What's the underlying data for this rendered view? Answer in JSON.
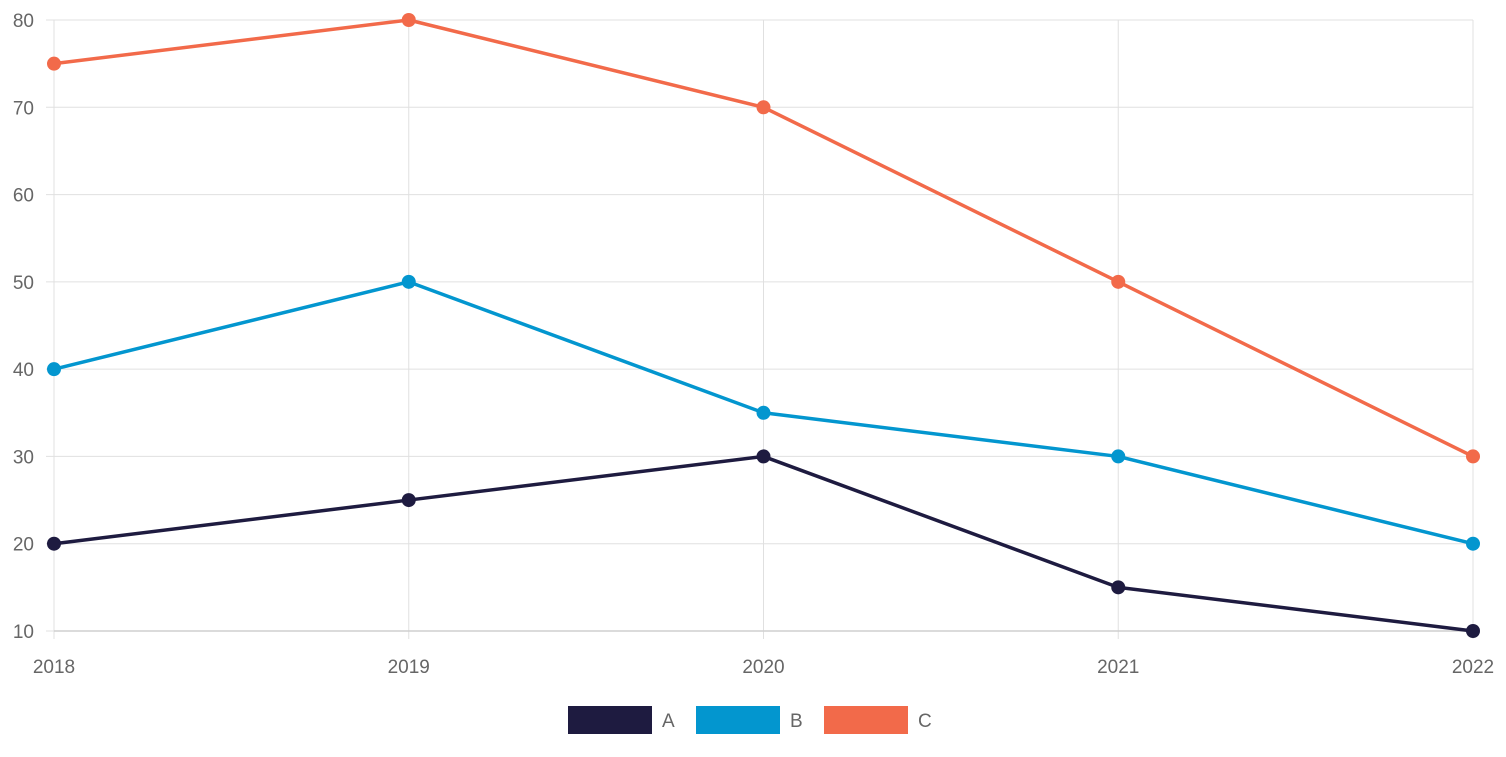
{
  "chart_data": {
    "type": "line",
    "title": "",
    "xlabel": "",
    "ylabel": "",
    "categories": [
      "2018",
      "2019",
      "2020",
      "2021",
      "2022"
    ],
    "ylim": [
      10,
      80
    ],
    "yticks": [
      10,
      20,
      30,
      40,
      50,
      60,
      70,
      80
    ],
    "grid": true,
    "legend_placement": "bottom",
    "series": [
      {
        "name": "A",
        "color": "#1e1b40",
        "values": [
          20,
          25,
          30,
          15,
          10
        ]
      },
      {
        "name": "B",
        "color": "#0396cf",
        "values": [
          40,
          50,
          35,
          30,
          20
        ]
      },
      {
        "name": "C",
        "color": "#f26a4a",
        "values": [
          75,
          80,
          70,
          50,
          30
        ]
      }
    ]
  }
}
